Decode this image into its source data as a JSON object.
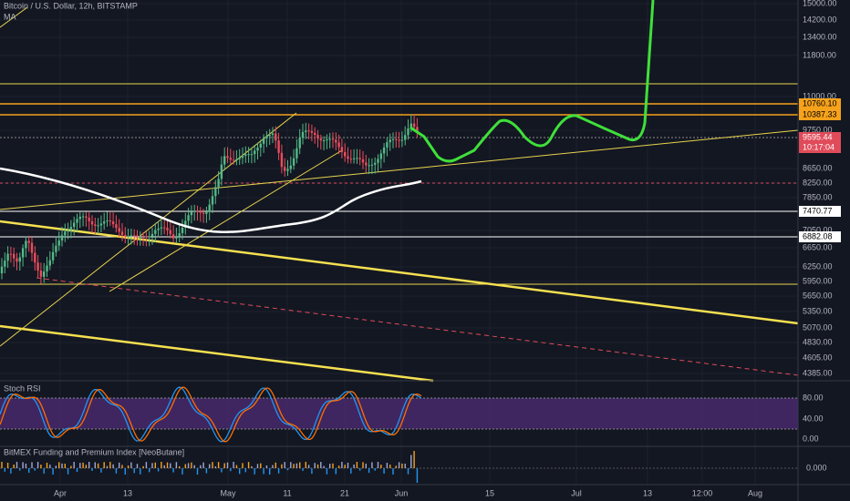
{
  "header": {
    "symbol": "Bitcoin / U.S. Dollar, 12h, BITSTAMP",
    "indicator": "MA"
  },
  "price_axis": {
    "labels": [
      "15000.00",
      "14200.00",
      "13400.00",
      "11800.00",
      "11000.00",
      "9750.00",
      "8650.00",
      "8250.00",
      "7850.00",
      "7050.00",
      "6650.00",
      "6250.00",
      "5950.00",
      "5650.00",
      "5350.00",
      "5070.00",
      "4830.00",
      "4605.00",
      "4385.00"
    ]
  },
  "price_tags": [
    "10760.10",
    "10387.33",
    "9595.44",
    "10:17:04",
    "7470.77",
    "6882.08"
  ],
  "stoch_pane": {
    "title": "Stoch RSI",
    "labels": [
      "80.00",
      "40.00",
      "0.00"
    ]
  },
  "funding_pane": {
    "title": "BitMEX Funding and Premium Index [NeoButane]",
    "labels": [
      "0.000"
    ]
  },
  "time_axis": {
    "labels": [
      "Apr",
      "13",
      "May",
      "11",
      "21",
      "Jun",
      "15",
      "Jul",
      "13",
      "12:00",
      "Aug"
    ]
  }
}
